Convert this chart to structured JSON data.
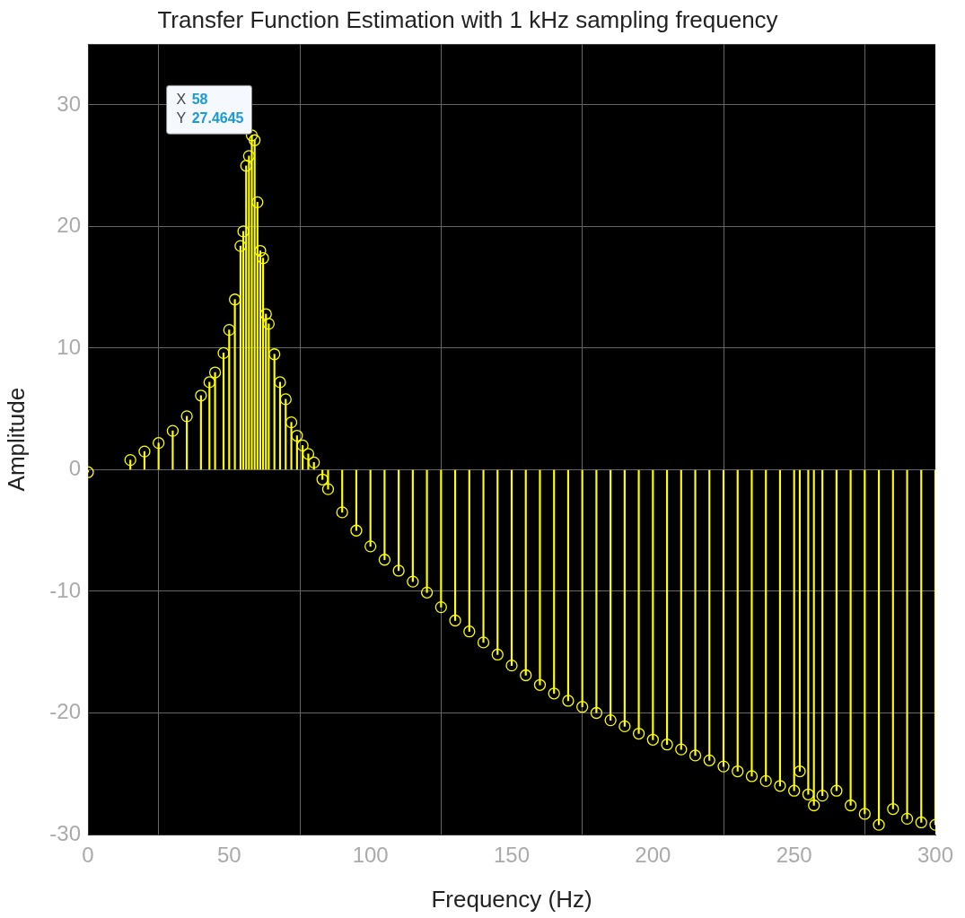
{
  "chart_data": {
    "type": "lollipop",
    "title": "Transfer Function Estimation with 1 kHz sampling frequency",
    "xlabel": "Frequency (Hz)",
    "ylabel": "Amplitude",
    "x": [
      0,
      15,
      20,
      25,
      30,
      35,
      40,
      43,
      45,
      48,
      50,
      52,
      54,
      55,
      56,
      57,
      58,
      59,
      60,
      61,
      62,
      63,
      64,
      66,
      68,
      70,
      72,
      74,
      76,
      78,
      80,
      83,
      85,
      90,
      95,
      100,
      105,
      110,
      115,
      120,
      125,
      130,
      135,
      140,
      145,
      150,
      155,
      160,
      165,
      170,
      175,
      180,
      185,
      190,
      195,
      200,
      205,
      210,
      215,
      220,
      225,
      230,
      235,
      240,
      245,
      250,
      252,
      255,
      257,
      260,
      265,
      270,
      275,
      280,
      285,
      290,
      295,
      300
    ],
    "values": [
      -0.2,
      0.8,
      1.5,
      2.2,
      3.2,
      4.4,
      6.1,
      7.2,
      8,
      9.6,
      11.5,
      14,
      18.4,
      19.6,
      25,
      25.8,
      27.5,
      27.1,
      22,
      18,
      17.4,
      12.8,
      12,
      9.5,
      7.2,
      5.8,
      3.9,
      2.8,
      2,
      1.3,
      0.6,
      -0.8,
      -1.6,
      -3.5,
      -5,
      -6.3,
      -7.4,
      -8.3,
      -9.2,
      -10.1,
      -11.3,
      -12.4,
      -13.3,
      -14.2,
      -15.2,
      -16.1,
      -16.9,
      -17.7,
      -18.4,
      -19,
      -19.5,
      -20,
      -20.6,
      -21.1,
      -21.7,
      -22.2,
      -22.6,
      -23,
      -23.5,
      -23.9,
      -24.4,
      -24.8,
      -25.2,
      -25.6,
      -26,
      -26.4,
      -24.8,
      -26.7,
      -27.6,
      -26.8,
      -26.4,
      -27.6,
      -28.3,
      -29.2,
      -27.9,
      -28.7,
      -29,
      -29.2
    ],
    "color": "#ffff00",
    "marker": "circle",
    "grid": true,
    "xlim": [
      0,
      300
    ],
    "xticks": [
      0,
      50,
      100,
      150,
      200,
      250,
      300
    ],
    "ylim": [
      -30,
      35
    ],
    "yticks": [
      -30,
      -20,
      -10,
      0,
      10,
      20,
      30
    ],
    "annotations": [
      {
        "text": "X 58\nY 27.4645",
        "x": 58,
        "y": 27.4645
      }
    ]
  }
}
